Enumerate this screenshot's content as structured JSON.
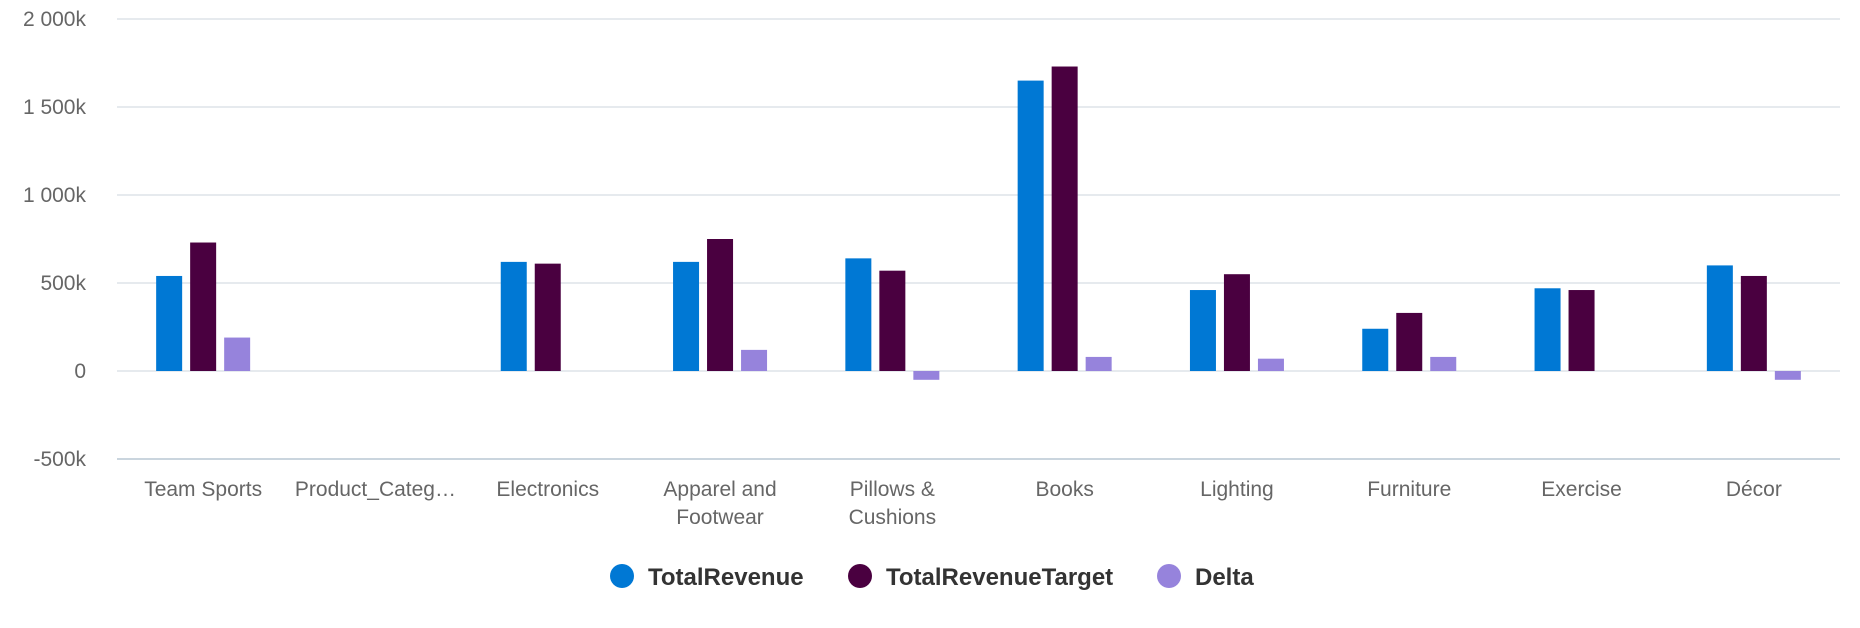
{
  "chart_data": {
    "type": "bar",
    "title": "",
    "xlabel": "",
    "ylabel": "",
    "ylim": [
      -500000,
      2000000
    ],
    "yticks": [
      {
        "value": 2000000,
        "label": "2 000k"
      },
      {
        "value": 1500000,
        "label": "1 500k"
      },
      {
        "value": 1000000,
        "label": "1 000k"
      },
      {
        "value": 500000,
        "label": "500k"
      },
      {
        "value": 0,
        "label": "0"
      },
      {
        "value": -500000,
        "label": "-500k"
      }
    ],
    "categories": [
      {
        "label": "Team Sports",
        "lines": [
          "Team Sports"
        ]
      },
      {
        "label": "Product_Categ…",
        "lines": [
          "Product_Categ…"
        ]
      },
      {
        "label": "Electronics",
        "lines": [
          "Electronics"
        ]
      },
      {
        "label": "Apparel and Footwear",
        "lines": [
          "Apparel and",
          "Footwear"
        ]
      },
      {
        "label": "Pillows & Cushions",
        "lines": [
          "Pillows &",
          "Cushions"
        ]
      },
      {
        "label": "Books",
        "lines": [
          "Books"
        ]
      },
      {
        "label": "Lighting",
        "lines": [
          "Lighting"
        ]
      },
      {
        "label": "Furniture",
        "lines": [
          "Furniture"
        ]
      },
      {
        "label": "Exercise",
        "lines": [
          "Exercise"
        ]
      },
      {
        "label": "Décor",
        "lines": [
          "Décor"
        ]
      }
    ],
    "series": [
      {
        "name": "TotalRevenue",
        "color": "#0078d4",
        "values": [
          540000,
          null,
          620000,
          620000,
          640000,
          1650000,
          460000,
          240000,
          470000,
          600000
        ]
      },
      {
        "name": "TotalRevenueTarget",
        "color": "#4a0040",
        "values": [
          730000,
          null,
          610000,
          750000,
          570000,
          1730000,
          550000,
          330000,
          460000,
          540000
        ]
      },
      {
        "name": "Delta",
        "color": "#9683dc",
        "values": [
          190000,
          null,
          0,
          120000,
          -50000,
          80000,
          70000,
          80000,
          0,
          -50000
        ]
      }
    ],
    "grid": true,
    "legend_position": "bottom-center"
  }
}
